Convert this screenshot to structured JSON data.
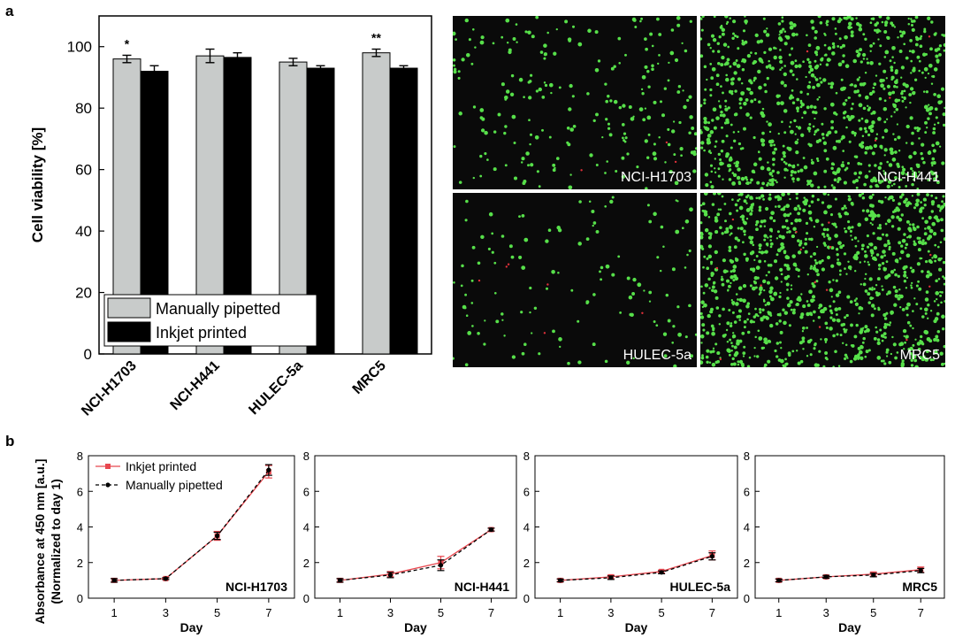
{
  "figure": {
    "panel_a_letter": "a",
    "panel_b_letter": "b"
  },
  "chart_data": [
    {
      "type": "bar",
      "panel": "a",
      "categories": [
        "NCI-H1703",
        "NCI-H441",
        "HULEC-5a",
        "MRC5"
      ],
      "series": [
        {
          "name": "Manually pipetted",
          "values": [
            96,
            97,
            95,
            98
          ],
          "errors": [
            1.2,
            2.2,
            1.2,
            1.2
          ],
          "color": "#c8cbca"
        },
        {
          "name": "Inkjet printed",
          "values": [
            92,
            96.5,
            93,
            93
          ],
          "errors": [
            1.8,
            1.5,
            0.8,
            0.8
          ],
          "color": "#000000"
        }
      ],
      "significance": [
        "*",
        "",
        "",
        "**"
      ],
      "ylabel": "Cell viability [%]",
      "ylim": [
        0,
        110
      ],
      "yticks": [
        0,
        20,
        40,
        60,
        80,
        100
      ],
      "legend_position": "bottom-left",
      "grid": false
    },
    {
      "type": "line",
      "panel": "b",
      "xlabel": "Day",
      "ylabel": "Absorbance at 450 nm [a.u.]",
      "ylabel2": "(Normalized to day 1)",
      "x": [
        1,
        3,
        5,
        7
      ],
      "ylim": [
        0,
        8
      ],
      "xlim": [
        0,
        8
      ],
      "yticks": [
        0,
        2,
        4,
        6,
        8
      ],
      "legend_position": "top-left",
      "legend": [
        {
          "name": "Inkjet printed",
          "color": "#e8474f",
          "marker": "square",
          "dash": "solid"
        },
        {
          "name": "Manually pipetted",
          "color": "#000000",
          "marker": "circle",
          "dash": "dashed"
        }
      ],
      "subplots": [
        {
          "title": "NCI-H1703",
          "series": [
            {
              "name": "Inkjet printed",
              "values": [
                1.0,
                1.1,
                3.5,
                7.1
              ],
              "errors": [
                0.1,
                0.05,
                0.25,
                0.35
              ]
            },
            {
              "name": "Manually pipetted",
              "values": [
                1.0,
                1.1,
                3.5,
                7.2
              ],
              "errors": [
                0.1,
                0.05,
                0.2,
                0.3
              ]
            }
          ]
        },
        {
          "title": "NCI-H441",
          "series": [
            {
              "name": "Inkjet printed",
              "values": [
                1.0,
                1.35,
                2.0,
                3.85
              ],
              "errors": [
                0.1,
                0.15,
                0.35,
                0.08
              ]
            },
            {
              "name": "Manually pipetted",
              "values": [
                1.0,
                1.3,
                1.85,
                3.85
              ],
              "errors": [
                0.1,
                0.15,
                0.3,
                0.08
              ]
            }
          ]
        },
        {
          "title": "HULEC-5a",
          "series": [
            {
              "name": "Inkjet printed",
              "values": [
                1.0,
                1.2,
                1.5,
                2.4
              ],
              "errors": [
                0.08,
                0.1,
                0.08,
                0.25
              ]
            },
            {
              "name": "Manually pipetted",
              "values": [
                1.0,
                1.15,
                1.45,
                2.35
              ],
              "errors": [
                0.08,
                0.1,
                0.08,
                0.2
              ]
            }
          ]
        },
        {
          "title": "MRC5",
          "series": [
            {
              "name": "Inkjet printed",
              "values": [
                1.0,
                1.2,
                1.35,
                1.6
              ],
              "errors": [
                0.08,
                0.08,
                0.12,
                0.15
              ]
            },
            {
              "name": "Manually pipetted",
              "values": [
                1.0,
                1.2,
                1.3,
                1.55
              ],
              "errors": [
                0.08,
                0.08,
                0.1,
                0.12
              ]
            }
          ]
        }
      ]
    }
  ],
  "micrographs": {
    "labels": [
      "NCI-H1703",
      "NCI-H441",
      "HULEC-5a",
      "MRC5"
    ],
    "live_color": "#57e04a",
    "dead_color": "#e0303a"
  }
}
